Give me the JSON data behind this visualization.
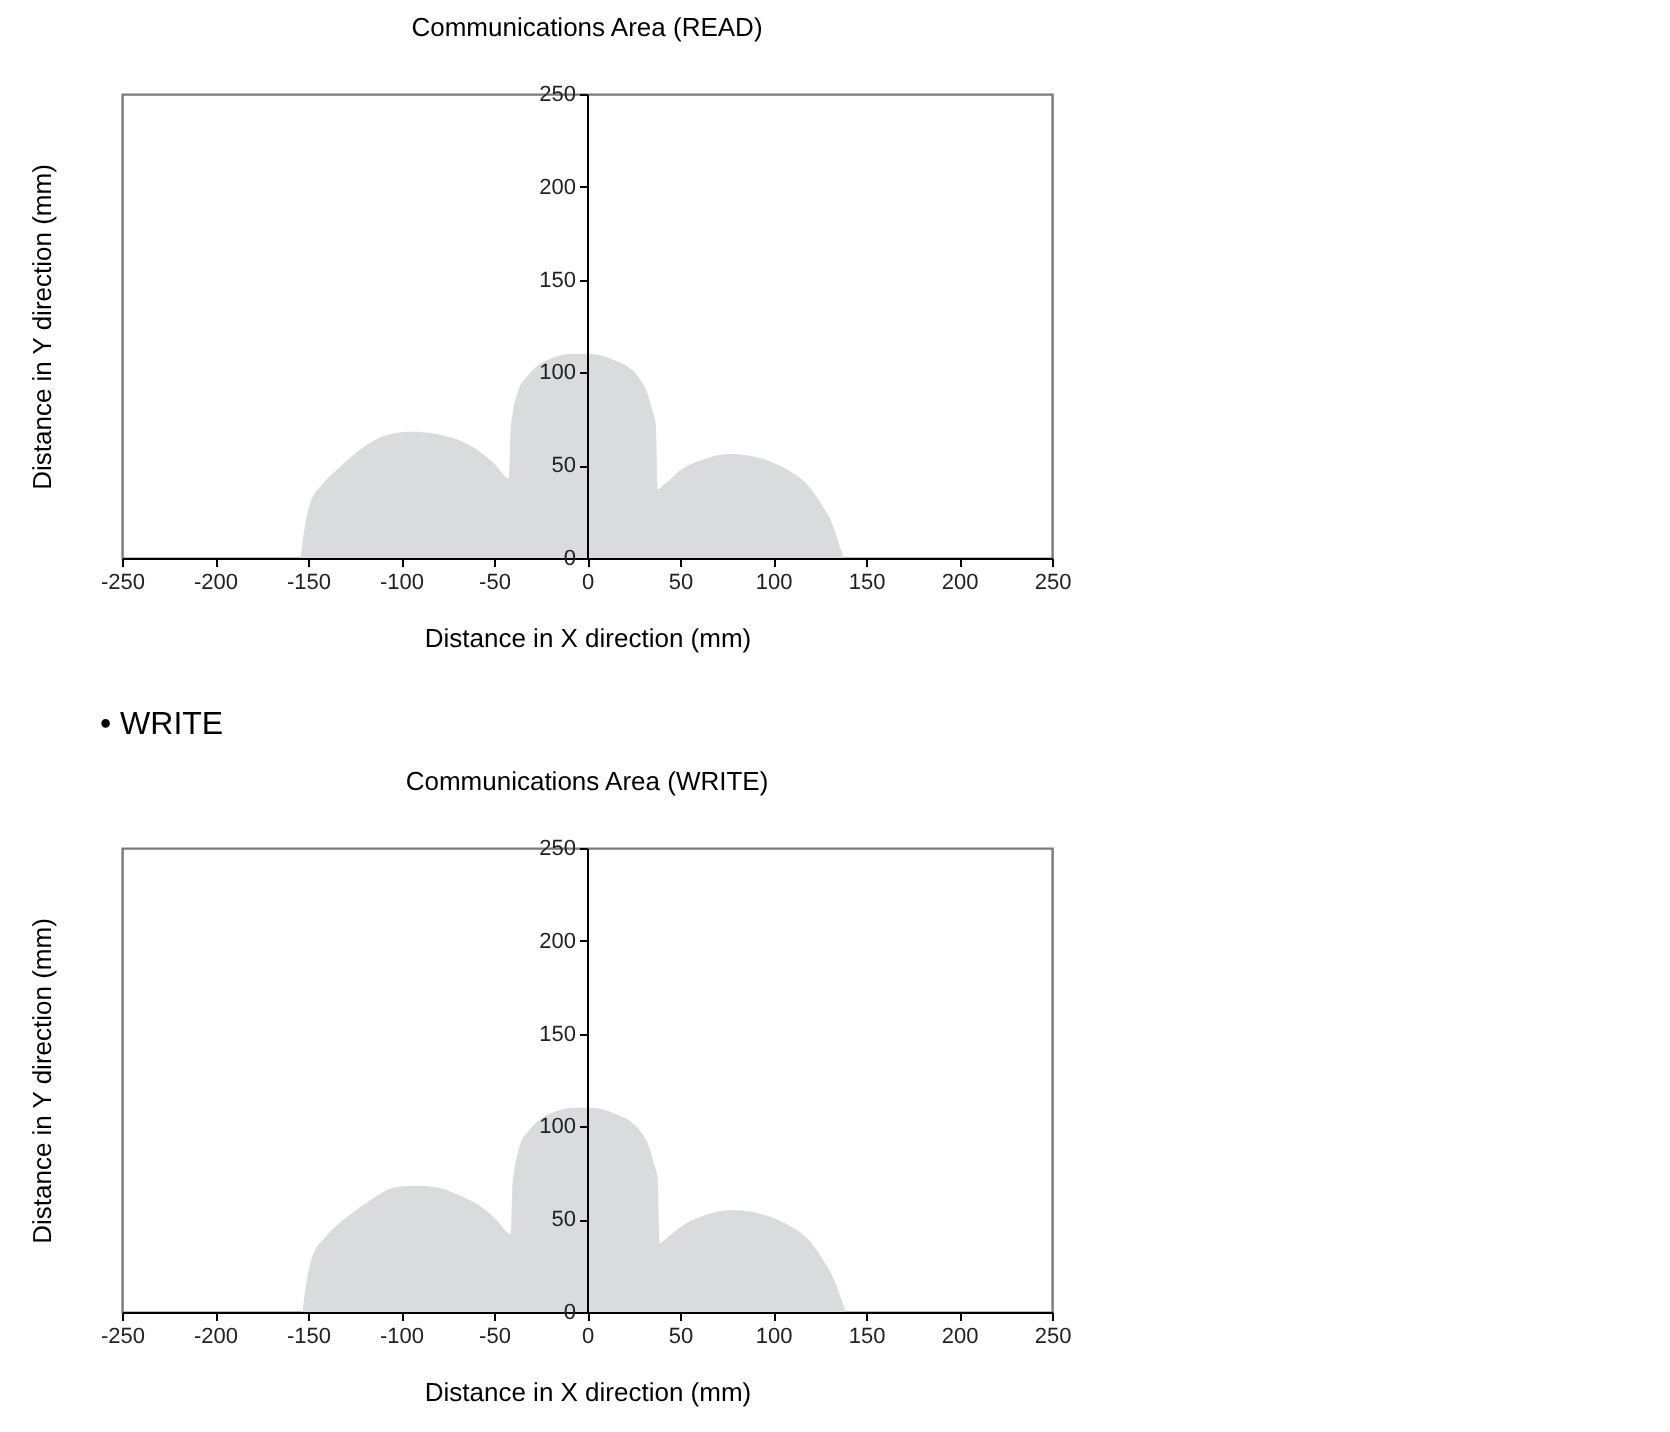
{
  "chart_data": [
    {
      "type": "area",
      "title": "Communications Area (READ)",
      "xlabel": "Distance in X direction (mm)",
      "ylabel": "Distance in Y direction (mm)",
      "color": "#dadbdc",
      "x": [
        -154,
        -152,
        -149,
        -142,
        -134,
        -125,
        -115,
        -105,
        -94,
        -82,
        -70,
        -60,
        -50,
        -42,
        -41,
        -40,
        -37,
        -32,
        -26,
        -18,
        -8,
        0,
        8,
        16,
        22,
        28,
        32,
        35,
        37,
        38,
        42,
        51,
        62,
        77,
        92,
        107,
        118,
        126,
        132,
        136,
        138
      ],
      "values": [
        0,
        15,
        29,
        40,
        48,
        56,
        63,
        67,
        68,
        67,
        64,
        59,
        51,
        43,
        70,
        78,
        90,
        98,
        104,
        108,
        110,
        110,
        109,
        106,
        103,
        97,
        90,
        80,
        72,
        37,
        40,
        48,
        53,
        56,
        54,
        48,
        40,
        29,
        18,
        6,
        0
      ],
      "xlim": [
        -250,
        250
      ],
      "ylim": [
        0,
        250
      ],
      "xticks": [
        -250,
        -200,
        -150,
        -100,
        -50,
        0,
        50,
        100,
        150,
        200,
        250
      ],
      "yticks": [
        0,
        50,
        100,
        150,
        200,
        250
      ]
    },
    {
      "type": "area",
      "title": "Communications Area (WRITE)",
      "xlabel": "Distance in X direction (mm)",
      "ylabel": "Distance in Y direction (mm)",
      "annotations": [
        "• WRITE"
      ],
      "color": "#dadbdc",
      "x": [
        -153,
        -151,
        -148,
        -141,
        -133,
        -124,
        -114,
        -104,
        -92,
        -80,
        -69,
        -59,
        -49,
        -41,
        -40,
        -39,
        -36,
        -31,
        -25,
        -17,
        -7,
        1,
        9,
        17,
        23,
        29,
        33,
        36,
        38,
        39,
        43,
        52,
        63,
        78,
        93,
        108,
        119,
        127,
        133,
        137,
        139
      ],
      "values": [
        0,
        15,
        29,
        40,
        48,
        55,
        62,
        67,
        68,
        67,
        63,
        58,
        50,
        42,
        70,
        77,
        90,
        98,
        104,
        108,
        110,
        110,
        109,
        106,
        103,
        97,
        90,
        80,
        72,
        37,
        40,
        47,
        52,
        55,
        53,
        47,
        39,
        28,
        17,
        6,
        0
      ],
      "xlim": [
        -250,
        250
      ],
      "ylim": [
        0,
        250
      ],
      "xticks": [
        -250,
        -200,
        -150,
        -100,
        -50,
        0,
        50,
        100,
        150,
        200,
        250
      ],
      "yticks": [
        0,
        50,
        100,
        150,
        200,
        250
      ]
    }
  ]
}
